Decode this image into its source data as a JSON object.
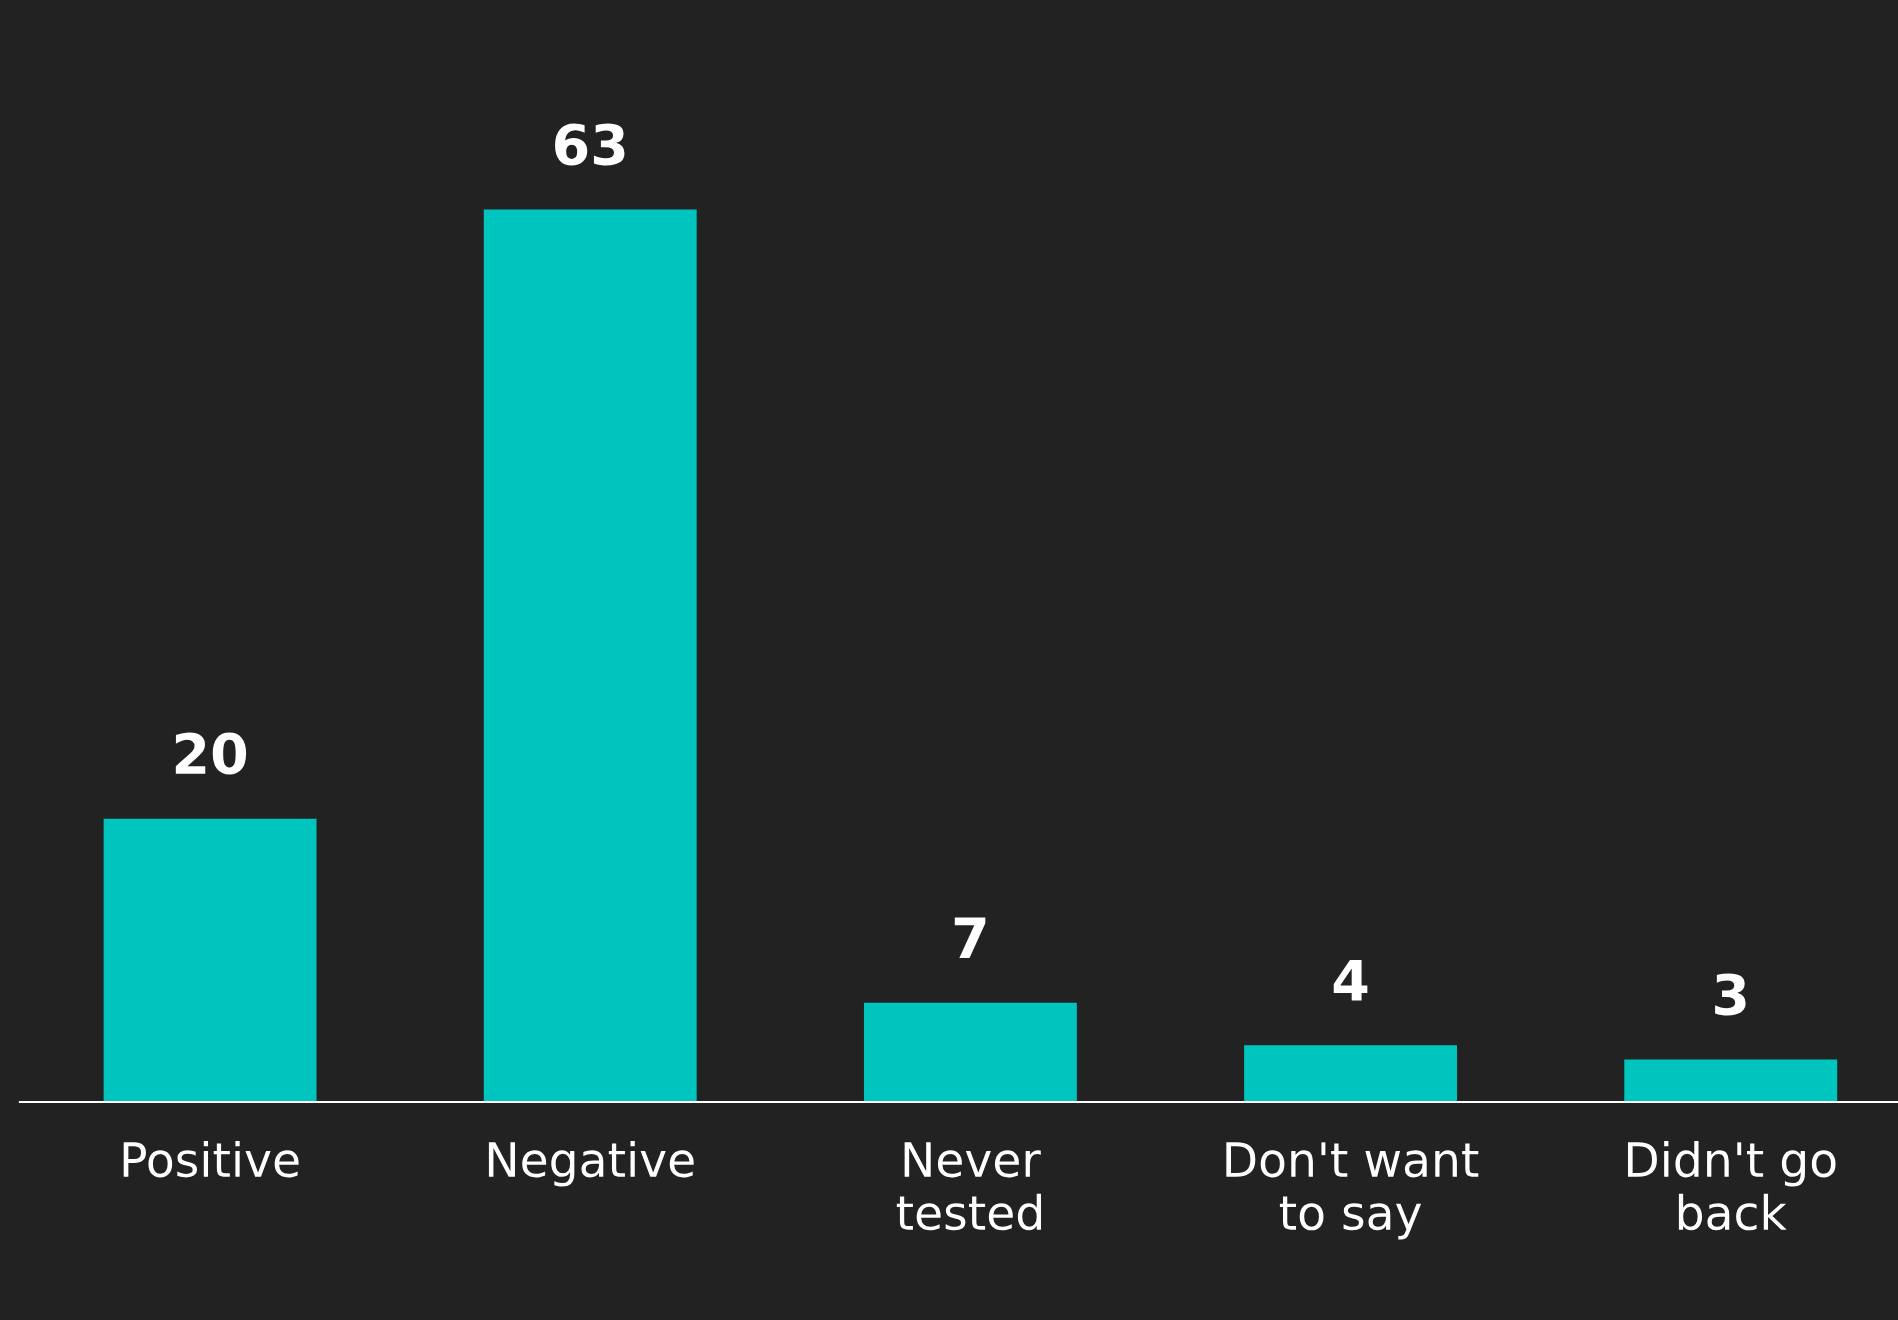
{
  "chart_data": {
    "type": "bar",
    "categories": [
      "Positive",
      "Negative",
      "Never\ntested",
      "Don't want\nto say",
      "Didn't go\nback"
    ],
    "values": [
      20,
      63,
      7,
      4,
      3
    ],
    "color": "#00c5be",
    "data_labels": true,
    "grid": false,
    "legend": false
  }
}
